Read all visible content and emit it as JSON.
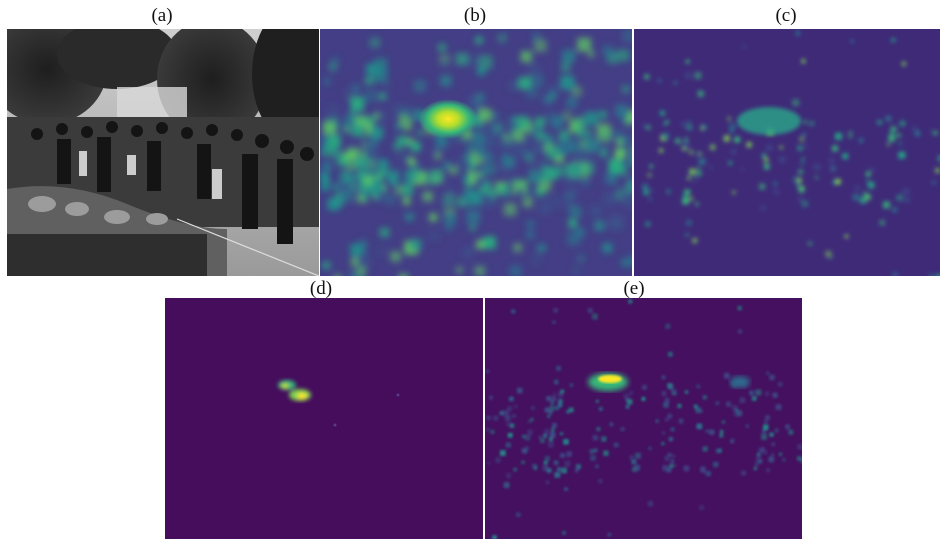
{
  "figure": {
    "panels": [
      {
        "id": "a",
        "label": "(a)",
        "content": "grayscale crowd photograph"
      },
      {
        "id": "b",
        "label": "(b)",
        "content": "heatmap"
      },
      {
        "id": "c",
        "label": "(c)",
        "content": "heatmap"
      },
      {
        "id": "d",
        "label": "(d)",
        "content": "heatmap"
      },
      {
        "id": "e",
        "label": "(e)",
        "content": "heatmap"
      }
    ],
    "colormap": [
      "#3b0f70",
      "#2b7c8e",
      "#22a884",
      "#7ad151",
      "#fde725"
    ]
  }
}
